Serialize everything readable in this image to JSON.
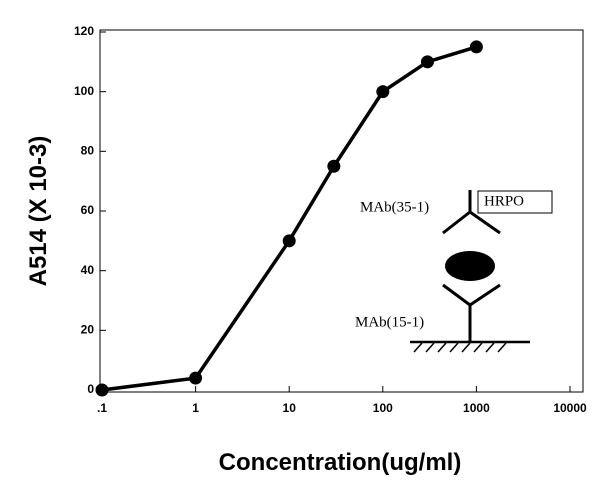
{
  "chart_data": {
    "type": "line",
    "x_label": "Concentration(ug/ml)",
    "y_label": "A514 (X 10-3)",
    "x": [
      0.1,
      1,
      10,
      30,
      100,
      300,
      1000
    ],
    "series": [
      {
        "color": "#000000",
        "values": [
          0,
          4,
          50,
          75,
          100,
          110,
          115
        ]
      }
    ],
    "xlim": [
      0.1,
      10000
    ],
    "xlog": true,
    "xticks": [
      {
        "value": 0.1,
        "label": ".1"
      },
      1,
      10,
      100,
      1000,
      10000
    ],
    "ylim": [
      0,
      120
    ],
    "yticks": [
      0,
      20,
      40,
      60,
      80,
      100,
      120
    ],
    "grid": false,
    "annotations": [
      "MAb(35-1)",
      "HRPO",
      "MAb(15-1)"
    ]
  }
}
